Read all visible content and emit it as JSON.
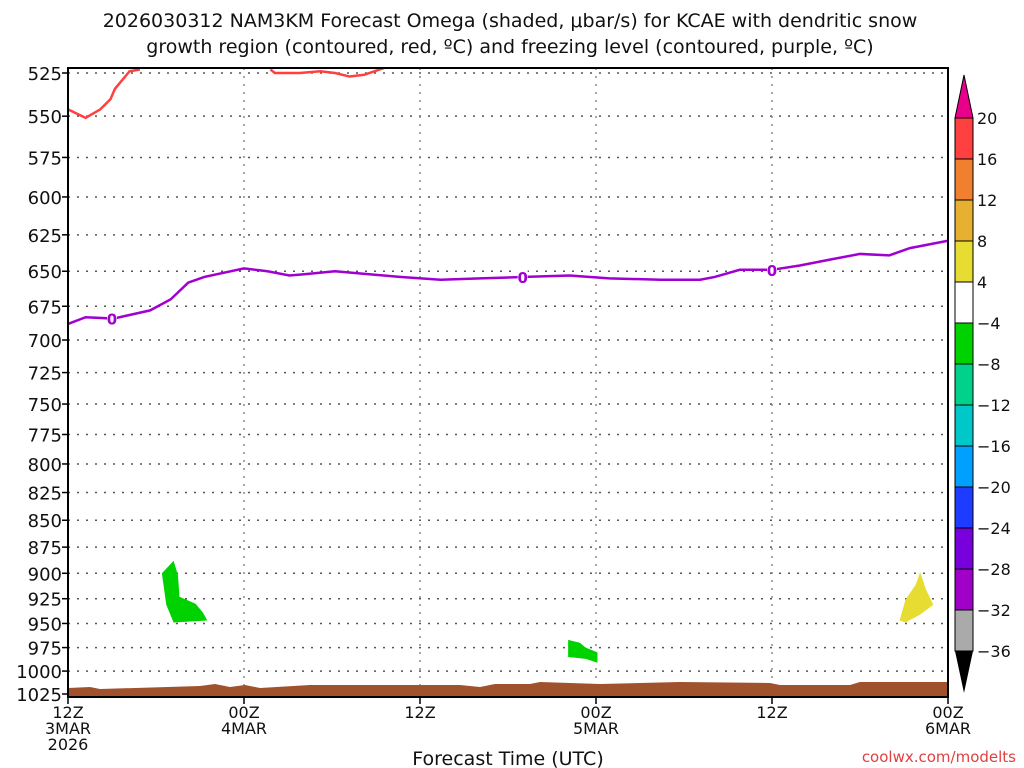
{
  "chart_data": {
    "type": "area",
    "title_line1": "2026030312 NAM3KM Forecast Omega (shaded, μbar/s) for KCAE with dendritic snow",
    "title_line2": "growth region (contoured, red, ºC) and freezing level (contoured, purple, ºC)",
    "xlabel": "Forecast Time (UTC)",
    "ylabel": "",
    "credit": "coolwx.com/modelts",
    "xlim_hours": [
      0,
      60
    ],
    "ylim_hpa": [
      525,
      1025
    ],
    "y_scale": "log",
    "y_ticks": [
      525,
      550,
      575,
      600,
      625,
      650,
      675,
      700,
      725,
      750,
      775,
      800,
      825,
      850,
      875,
      900,
      925,
      950,
      975,
      1000,
      1025
    ],
    "x_ticks": [
      {
        "hour": 0,
        "l1": "12Z",
        "l2": "3MAR",
        "l3": "2026"
      },
      {
        "hour": 12,
        "l1": "00Z",
        "l2": "4MAR",
        "l3": ""
      },
      {
        "hour": 24,
        "l1": "12Z",
        "l2": "",
        "l3": ""
      },
      {
        "hour": 36,
        "l1": "00Z",
        "l2": "5MAR",
        "l3": ""
      },
      {
        "hour": 48,
        "l1": "12Z",
        "l2": "",
        "l3": ""
      },
      {
        "hour": 60,
        "l1": "00Z",
        "l2": "6MAR",
        "l3": ""
      }
    ],
    "freezing_level": {
      "label": "0",
      "color": "#a000d0",
      "label_hours": [
        3,
        31,
        48
      ],
      "points": [
        [
          0,
          688
        ],
        [
          1.2,
          683
        ],
        [
          3.1,
          684
        ],
        [
          5.6,
          678
        ],
        [
          7,
          670
        ],
        [
          8.2,
          658
        ],
        [
          9.3,
          654
        ],
        [
          12,
          648
        ],
        [
          13.6,
          650
        ],
        [
          15.1,
          653
        ],
        [
          16.2,
          652
        ],
        [
          18.2,
          650
        ],
        [
          22.6,
          654
        ],
        [
          25.4,
          656
        ],
        [
          28.1,
          655
        ],
        [
          31.2,
          654
        ],
        [
          34.2,
          653
        ],
        [
          36.9,
          655
        ],
        [
          40.4,
          656
        ],
        [
          43.1,
          656
        ],
        [
          44.1,
          654
        ],
        [
          45.8,
          649
        ],
        [
          48,
          649
        ],
        [
          49.9,
          646
        ],
        [
          51.9,
          642
        ],
        [
          54,
          638
        ],
        [
          56,
          639
        ],
        [
          57.4,
          634
        ],
        [
          60,
          629
        ]
      ]
    },
    "dendritic_region": {
      "color": "#ff4040",
      "segments": [
        [
          [
            0,
            546
          ],
          [
            1.2,
            551
          ],
          [
            2.2,
            546
          ],
          [
            2.9,
            540
          ],
          [
            3.2,
            534
          ],
          [
            4.2,
            524
          ],
          [
            4.9,
            523
          ]
        ],
        [
          [
            13.8,
            523
          ],
          [
            14.1,
            525
          ],
          [
            15.8,
            525
          ],
          [
            17.2,
            524
          ],
          [
            18.2,
            525
          ],
          [
            19.2,
            527
          ],
          [
            20.2,
            526
          ],
          [
            21.6,
            522
          ]
        ]
      ]
    },
    "omega_shaded": [
      {
        "value_range": [
          -8,
          -4
        ],
        "color": "#00d200",
        "polygon": [
          [
            6.4,
            900
          ],
          [
            7.2,
            888
          ],
          [
            7.5,
            902
          ],
          [
            7.6,
            923
          ],
          [
            8.7,
            930
          ],
          [
            9.2,
            939
          ],
          [
            9.5,
            947
          ],
          [
            7.2,
            949
          ],
          [
            6.7,
            931
          ]
        ]
      },
      {
        "value_range": [
          -8,
          -4
        ],
        "color": "#00d200",
        "polygon": [
          [
            34.1,
            967
          ],
          [
            34.9,
            970
          ],
          [
            35.3,
            975
          ],
          [
            36.1,
            980
          ],
          [
            36.1,
            991
          ],
          [
            35.3,
            987
          ],
          [
            34.1,
            985
          ]
        ]
      },
      {
        "value_range": [
          4,
          8
        ],
        "color": "#e6dc32",
        "polygon": [
          [
            56.7,
            947
          ],
          [
            57.1,
            926
          ],
          [
            57.8,
            911
          ],
          [
            58.1,
            899
          ],
          [
            58.5,
            916
          ],
          [
            59.0,
            931
          ],
          [
            58.1,
            941
          ],
          [
            57.1,
            949
          ]
        ]
      }
    ],
    "terrain_color": "#a0522d",
    "colorbar": {
      "labels": [
        "20",
        "16",
        "12",
        "8",
        "4",
        "-4",
        "-8",
        "-12",
        "-16",
        "-20",
        "-24",
        "-28",
        "-32",
        "-36"
      ],
      "colors": [
        "#ff4040",
        "#f08030",
        "#e8b030",
        "#e6dc32",
        "#ffffff",
        "#00d200",
        "#00d28c",
        "#00c8c8",
        "#00a0ff",
        "#1e3cff",
        "#7800dc",
        "#a000c8",
        "#aaaaaa"
      ],
      "top_arrow": "#e8008a",
      "bottom_arrow": "#000000"
    }
  }
}
